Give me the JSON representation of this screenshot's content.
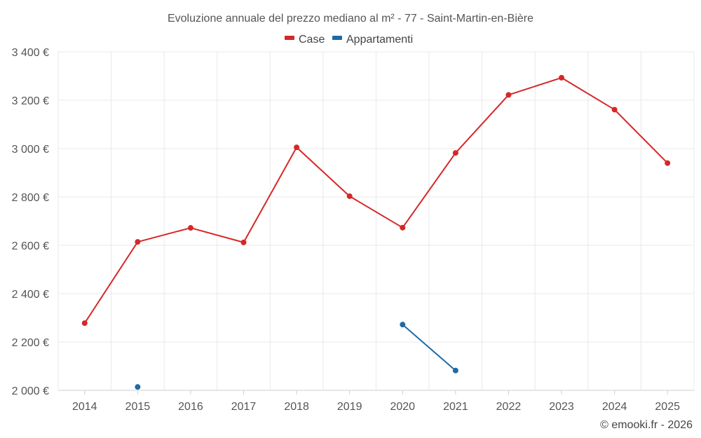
{
  "chart_data": {
    "type": "line",
    "title": "Evoluzione annuale del prezzo mediano al m² - 77 - Saint-Martin-en-Bière",
    "credit": "© emooki.fr - 2026",
    "xlabel": "",
    "ylabel": "",
    "categories": [
      "2014",
      "2015",
      "2016",
      "2017",
      "2018",
      "2019",
      "2020",
      "2021",
      "2022",
      "2023",
      "2024",
      "2025"
    ],
    "ylim": [
      2000,
      3400
    ],
    "yticks": [
      2000,
      2200,
      2400,
      2600,
      2800,
      3000,
      3200,
      3400
    ],
    "ytick_labels": [
      "2 000 €",
      "2 200 €",
      "2 400 €",
      "2 600 €",
      "2 800 €",
      "3 000 €",
      "3 200 €",
      "3 400 €"
    ],
    "grid": true,
    "legend_position": "top-center",
    "series": [
      {
        "name": "Case",
        "color": "#d62728",
        "values": [
          2278,
          2614,
          2672,
          2612,
          3005,
          2803,
          2673,
          2982,
          3222,
          3293,
          3161,
          2940
        ]
      },
      {
        "name": "Appartamenti",
        "color": "#1f6aa5",
        "values": [
          null,
          2014,
          null,
          null,
          null,
          null,
          2272,
          2082,
          null,
          null,
          null,
          null
        ]
      }
    ]
  }
}
